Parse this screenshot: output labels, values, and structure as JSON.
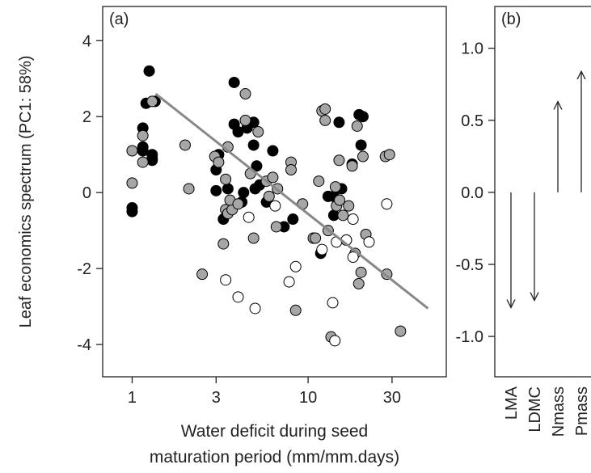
{
  "chart_data": [
    {
      "type": "scatter",
      "label": "(a)",
      "ylabel": "Leaf economics spectrum (PC1: 58%)",
      "xlabel": [
        "Water deficit during seed",
        "maturation period (mm/mm.days)"
      ],
      "xscale": "log",
      "xlim": [
        0.68,
        61
      ],
      "xticks": [
        1,
        3,
        10,
        30
      ],
      "ylim": [
        -4.85,
        4.9
      ],
      "yticks": [
        -4,
        -2,
        0,
        2,
        4
      ],
      "series": [
        {
          "color": "#000000",
          "x": [
            1.0,
            1.0,
            1.15,
            1.15,
            1.15,
            1.2,
            1.25,
            1.3,
            1.3,
            1.35,
            1.3,
            3.0,
            3.0,
            3.1,
            3.3,
            3.5,
            3.8,
            3.8,
            4.0,
            4.2,
            4.3,
            4.5,
            4.9,
            4.9,
            5.0,
            5.1,
            5.3,
            5.8,
            6.3,
            7.3,
            8.2,
            11.8,
            13,
            14,
            15,
            15.5,
            17.8,
            19.5,
            20.5,
            20,
            14
          ],
          "values": [
            -0.5,
            -0.4,
            1.7,
            1.2,
            1.1,
            2.35,
            3.2,
            0.9,
            1.0,
            2.4,
            0.85,
            0.05,
            0.6,
            1.0,
            -0.7,
            0.1,
            2.9,
            1.8,
            1.6,
            -0.25,
            0.0,
            1.7,
            1.85,
            1.25,
            0.1,
            0.7,
            0.2,
            -0.25,
            1.1,
            -0.9,
            -0.7,
            -1.6,
            -0.1,
            -0.1,
            1.85,
            0.1,
            0.75,
            2.05,
            2.0,
            1.25,
            -0.6
          ]
        },
        {
          "color": "#a6a6a6",
          "x": [
            1.0,
            1.0,
            1.15,
            1.15,
            1.3,
            2.0,
            2.1,
            2.5,
            2.95,
            3.1,
            3.3,
            3.4,
            3.4,
            3.5,
            3.5,
            3.7,
            3.6,
            4.0,
            4.4,
            4.4,
            4.7,
            4.9,
            5.2,
            5.8,
            6.0,
            6.3,
            6.7,
            6.6,
            8.0,
            8.0,
            8.5,
            9.3,
            10.7,
            11,
            11.5,
            12,
            12.5,
            12.5,
            13,
            13.5,
            14.3,
            14.5,
            15,
            15.1,
            15.8,
            16.5,
            17,
            17.8,
            18.5,
            19,
            19.4,
            20,
            20.5,
            21.3,
            27.5,
            29,
            28,
            33.5
          ],
          "values": [
            1.1,
            0.25,
            0.8,
            1.5,
            2.4,
            1.25,
            0.1,
            -2.15,
            0.95,
            0.8,
            -1.35,
            0.35,
            -0.45,
            -0.55,
            1.2,
            -0.45,
            -0.2,
            -0.3,
            2.6,
            1.9,
            0.5,
            -1.2,
            1.6,
            0.3,
            -0.1,
            0.4,
            0.1,
            -0.9,
            0.8,
            0.6,
            -3.1,
            -0.3,
            -1.2,
            -1.2,
            0.3,
            2.15,
            2.2,
            1.9,
            -1.0,
            -3.8,
            0.15,
            -0.35,
            0.85,
            -0.2,
            -0.6,
            -1.25,
            -0.35,
            0.7,
            -1.6,
            1.75,
            -2.4,
            -2.1,
            0.95,
            -1.1,
            0.95,
            1.0,
            -2.15,
            -3.65
          ]
        },
        {
          "color": "#ffffff",
          "x": [
            3.4,
            4.0,
            4.6,
            5.0,
            6.5,
            7.8,
            8.5,
            12,
            13.8,
            14.2,
            14.5,
            16.5,
            18,
            18,
            22.2,
            28
          ],
          "values": [
            -2.3,
            -2.75,
            -0.65,
            -3.05,
            -0.35,
            -2.35,
            -1.95,
            -1.5,
            -2.9,
            -3.9,
            -1.3,
            -1.25,
            -1.7,
            -0.7,
            -1.3,
            -0.3
          ]
        }
      ],
      "line": {
        "color": "#888888",
        "x": [
          1.36,
          48
        ],
        "values": [
          2.6,
          -3.05
        ]
      }
    },
    {
      "type": "arrow",
      "label": "(b)",
      "categories": [
        "LMA",
        "LDMC",
        "Nmass",
        "Pmass"
      ],
      "values": [
        -0.8,
        -0.75,
        0.63,
        0.84
      ],
      "ylim": [
        -1.28,
        1.29
      ],
      "yticks": [
        {
          "value": -1,
          "label": "-1.0"
        },
        -0.5,
        {
          "value": 0,
          "label": "0.0"
        },
        0.5,
        {
          "value": 1,
          "label": "1.0"
        }
      ]
    }
  ]
}
